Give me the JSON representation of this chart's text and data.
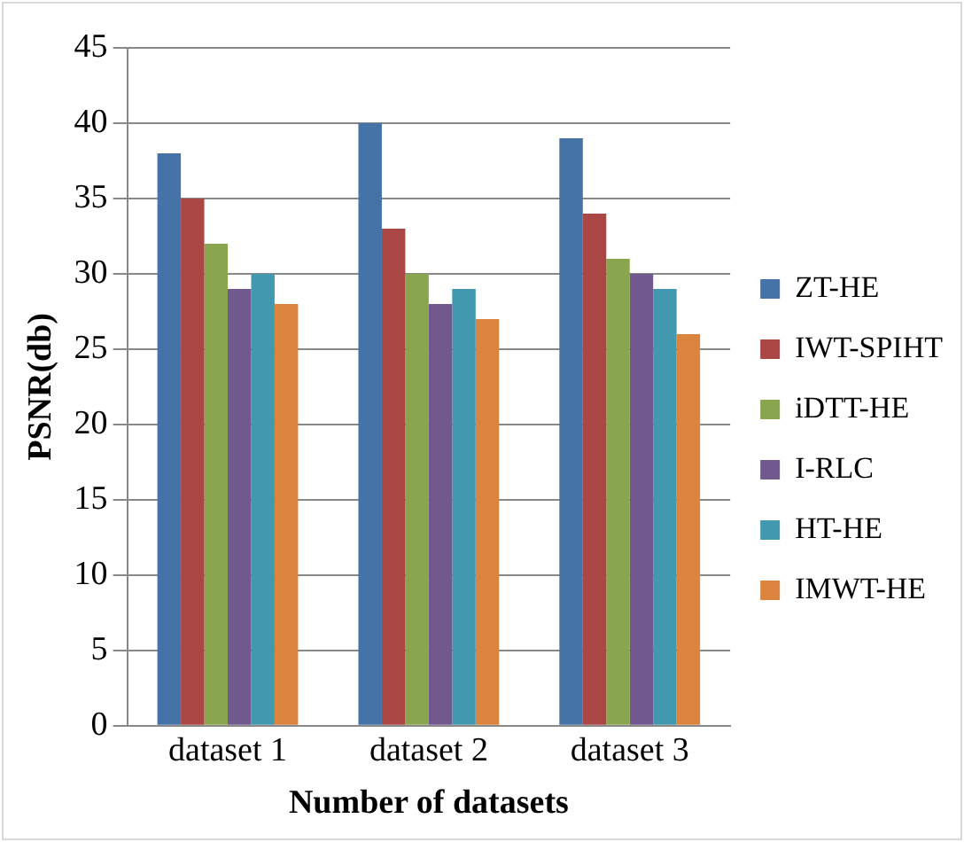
{
  "chart_data": {
    "type": "bar",
    "xlabel": "Number of datasets",
    "ylabel": "PSNR(db)",
    "categories": [
      "dataset 1",
      "dataset 2",
      "dataset 3"
    ],
    "series": [
      {
        "name": "ZT-HE",
        "color": "#4572a7",
        "values": [
          38,
          40,
          39
        ]
      },
      {
        "name": "IWT-SPIHT",
        "color": "#aa4643",
        "values": [
          35,
          33,
          34
        ]
      },
      {
        "name": "iDTT-HE",
        "color": "#89a54e",
        "values": [
          32,
          30,
          31
        ]
      },
      {
        "name": "I-RLC",
        "color": "#71588f",
        "values": [
          29,
          28,
          30
        ]
      },
      {
        "name": "HT-HE",
        "color": "#4198af",
        "values": [
          30,
          29,
          29
        ]
      },
      {
        "name": "IMWT-HE",
        "color": "#db843d",
        "values": [
          28,
          27,
          26
        ]
      }
    ],
    "ylim": [
      0,
      45
    ],
    "yticks": [
      0,
      5,
      10,
      15,
      20,
      25,
      30,
      35,
      40,
      45
    ],
    "grid": "y",
    "legend": "right"
  }
}
